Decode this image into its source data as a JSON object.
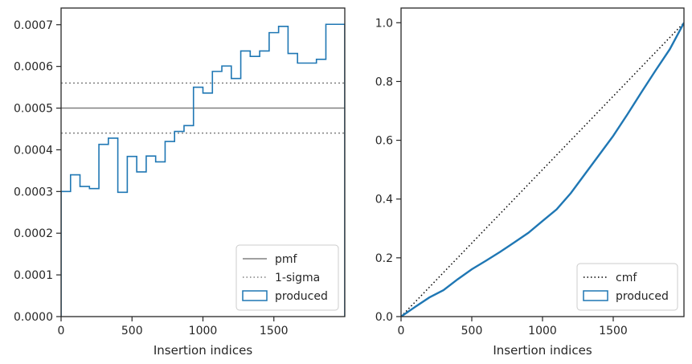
{
  "chart_data": [
    {
      "type": "histogram",
      "xlabel": "Insertion indices",
      "ylabel": "",
      "xlim": [
        0,
        2000
      ],
      "ylim": [
        0,
        0.00074
      ],
      "grid": false,
      "legend_position": "bottom-right",
      "x_ticks": [
        {
          "value": 0,
          "label": "0"
        },
        {
          "value": 500,
          "label": "500"
        },
        {
          "value": 1000,
          "label": "1000"
        },
        {
          "value": 1500,
          "label": "1500"
        }
      ],
      "y_ticks": [
        {
          "value": 0,
          "label": "0.0000"
        },
        {
          "value": 0.0001,
          "label": "0.0001"
        },
        {
          "value": 0.0002,
          "label": "0.0002"
        },
        {
          "value": 0.0003,
          "label": "0.0003"
        },
        {
          "value": 0.0004,
          "label": "0.0004"
        },
        {
          "value": 0.0005,
          "label": "0.0005"
        },
        {
          "value": 0.0006,
          "label": "0.0006"
        },
        {
          "value": 0.0007,
          "label": "0.0007"
        }
      ],
      "reference_lines": [
        {
          "name": "pmf",
          "y": 0.0005,
          "style": "solid",
          "color": "#808080"
        },
        {
          "name": "1-sigma",
          "y": 0.00056,
          "style": "dotted",
          "color": "#808080"
        },
        {
          "name": "1-sigma",
          "y": 0.00044,
          "style": "dotted",
          "color": "#808080"
        }
      ],
      "series": [
        {
          "name": "produced",
          "color": "#1f77b4",
          "bin_edges": [
            0,
            66.7,
            133.3,
            200,
            266.7,
            333.3,
            400,
            466.7,
            533.3,
            600,
            666.7,
            733.3,
            800,
            866.7,
            933.3,
            1000,
            1066.7,
            1133.3,
            1200,
            1266.7,
            1333.3,
            1400,
            1466.7,
            1533.3,
            1600,
            1666.7,
            1733.3,
            1800,
            1866.7,
            1933.3,
            2000
          ],
          "values": [
            0.0003,
            0.00034,
            0.000312,
            0.000307,
            0.000413,
            0.000428,
            0.000298,
            0.000384,
            0.000347,
            0.000385,
            0.000371,
            0.00042,
            0.000444,
            0.000458,
            0.00055,
            0.000536,
            0.000588,
            0.000601,
            0.000571,
            0.000637,
            0.000624,
            0.000637,
            0.000681,
            0.000696,
            0.000631,
            0.000608,
            0.000608,
            0.000617,
            0.000701,
            0.000701
          ]
        }
      ],
      "legend": [
        "pmf",
        "1-sigma",
        "produced"
      ]
    },
    {
      "type": "line",
      "xlabel": "Insertion indices",
      "ylabel": "",
      "xlim": [
        0,
        2000
      ],
      "ylim": [
        0,
        1.05
      ],
      "grid": false,
      "legend_position": "bottom-right",
      "x_ticks": [
        {
          "value": 0,
          "label": "0"
        },
        {
          "value": 500,
          "label": "500"
        },
        {
          "value": 1000,
          "label": "1000"
        },
        {
          "value": 1500,
          "label": "1500"
        }
      ],
      "y_ticks": [
        {
          "value": 0,
          "label": "0.0"
        },
        {
          "value": 0.2,
          "label": "0.2"
        },
        {
          "value": 0.4,
          "label": "0.4"
        },
        {
          "value": 0.6,
          "label": "0.6"
        },
        {
          "value": 0.8,
          "label": "0.8"
        },
        {
          "value": 1.0,
          "label": "1.0"
        }
      ],
      "series": [
        {
          "name": "cmf",
          "style": "dotted",
          "color": "#000000",
          "x": [
            0,
            2000
          ],
          "y": [
            0,
            1.0
          ]
        },
        {
          "name": "produced",
          "style": "solid",
          "color": "#1f77b4",
          "x": [
            0,
            100,
            200,
            300,
            400,
            500,
            600,
            700,
            800,
            900,
            1000,
            1100,
            1200,
            1300,
            1400,
            1500,
            1600,
            1700,
            1800,
            1900,
            2000
          ],
          "y": [
            0,
            0.033,
            0.065,
            0.09,
            0.127,
            0.161,
            0.19,
            0.22,
            0.252,
            0.285,
            0.325,
            0.365,
            0.42,
            0.485,
            0.55,
            0.615,
            0.688,
            0.764,
            0.838,
            0.91,
            1.0
          ]
        }
      ],
      "legend": [
        "cmf",
        "produced"
      ]
    }
  ]
}
